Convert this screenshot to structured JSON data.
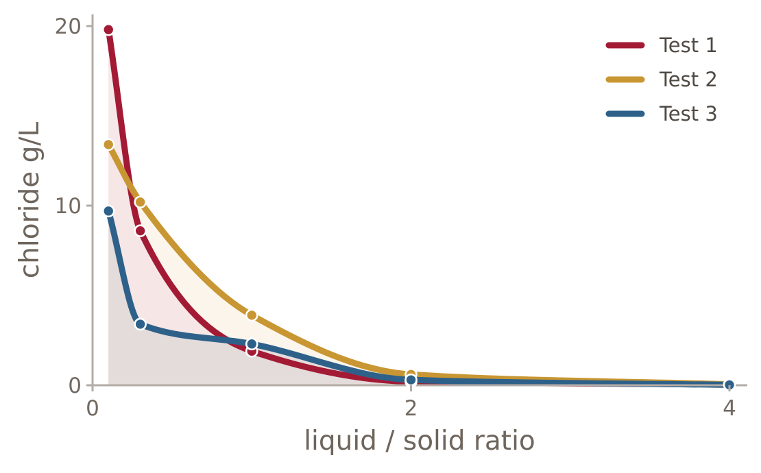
{
  "chart_data": {
    "type": "line",
    "xlabel": "liquid / solid ratio",
    "ylabel": "chloride  g/L",
    "xlim": [
      0,
      4.1
    ],
    "ylim": [
      0,
      20.6
    ],
    "xticks": [
      0,
      2,
      4
    ],
    "yticks": [
      0,
      10,
      20
    ],
    "grid": false,
    "legend": "top-right",
    "series": [
      {
        "name": "Test 1",
        "color": "#a31a35",
        "fill": "#f4e3e5",
        "x": [
          0.1,
          0.3,
          1.0,
          2.0,
          4.0
        ],
        "y": [
          19.8,
          8.6,
          1.9,
          0.2,
          0.05
        ]
      },
      {
        "name": "Test 2",
        "color": "#c89632",
        "fill": "#fbf3e8",
        "x": [
          0.1,
          0.3,
          1.0,
          2.0,
          4.0
        ],
        "y": [
          13.4,
          10.2,
          3.9,
          0.6,
          0.05
        ]
      },
      {
        "name": "Test 3",
        "color": "#2e6189",
        "fill": "#e0d8d8",
        "x": [
          0.1,
          0.3,
          1.0,
          2.0,
          4.0
        ],
        "y": [
          9.7,
          3.4,
          2.3,
          0.3,
          0.02
        ]
      }
    ]
  }
}
